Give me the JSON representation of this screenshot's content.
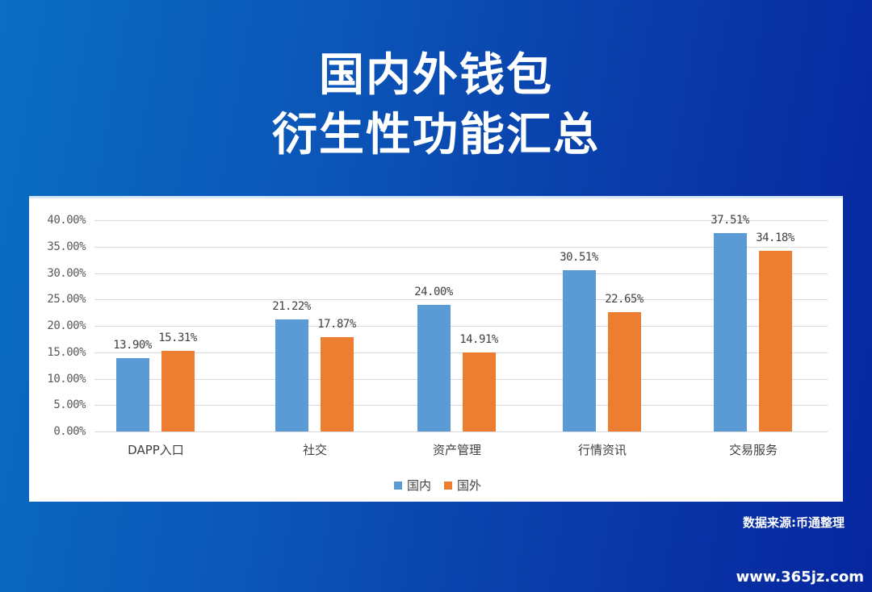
{
  "header": {
    "title_line1": "国内外钱包",
    "title_line2": "衍生性功能汇总"
  },
  "footer": {
    "source": "数据来源:币通整理",
    "watermark": "www.365jz.com"
  },
  "colors": {
    "domestic": "#5b9bd5",
    "foreign": "#ed7d31",
    "background_start": "#0a6ec2",
    "background_end": "#0626a0"
  },
  "chart_data": {
    "type": "bar",
    "title": "国内外钱包衍生性功能汇总",
    "xlabel": "",
    "ylabel": "",
    "ylim": [
      0,
      40
    ],
    "yticks": [
      "0.00%",
      "5.00%",
      "10.00%",
      "15.00%",
      "20.00%",
      "25.00%",
      "30.00%",
      "35.00%",
      "40.00%"
    ],
    "grid": true,
    "legend_position": "bottom",
    "categories": [
      "DAPP入口",
      "社交",
      "资产管理",
      "行情资讯",
      "交易服务"
    ],
    "series": [
      {
        "name": "国内",
        "values": [
          13.9,
          21.22,
          24.0,
          30.51,
          37.51
        ],
        "labels": [
          "13.90%",
          "21.22%",
          "24.00%",
          "30.51%",
          "37.51%"
        ]
      },
      {
        "name": "国外",
        "values": [
          15.31,
          17.87,
          14.91,
          22.65,
          34.18
        ],
        "labels": [
          "15.31%",
          "17.87%",
          "14.91%",
          "22.65%",
          "34.18%"
        ]
      }
    ]
  }
}
